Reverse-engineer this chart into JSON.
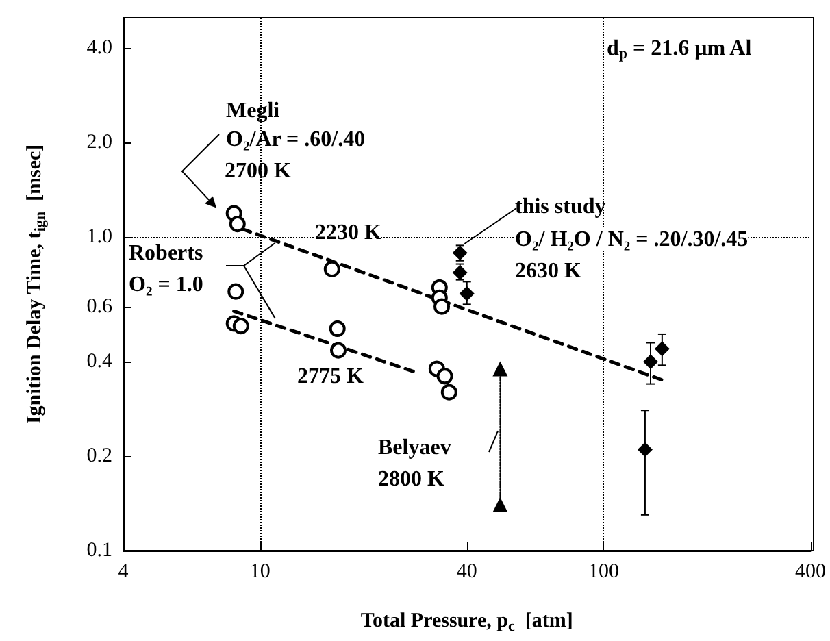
{
  "chart_data": {
    "type": "scatter",
    "xlabel": "Total Pressure, p$_{c}$  [atm]",
    "ylabel": "Ignition Delay Time, t$_{ign}$  [msec]",
    "log": "xy",
    "xlim": [
      4,
      400
    ],
    "xticks": [
      4,
      10,
      40,
      100,
      400
    ],
    "ylim": [
      0.1,
      5
    ],
    "yticks": [
      0.1,
      0.2,
      0.4,
      0.6,
      {
        "value": 1,
        "label": "1.0"
      },
      {
        "value": 2,
        "label": "2.0"
      },
      {
        "value": 4,
        "label": "4.0"
      }
    ],
    "grid": false,
    "series": [
      {
        "marker": "circle",
        "color": "#000000",
        "x": [
          8.4,
          8.6,
          16.2,
          8.5,
          8.4,
          8.8,
          16.8,
          16.9,
          33.3,
          33.3,
          33.8,
          32.7,
          34.5,
          35.5
        ],
        "values": [
          1.19,
          1.1,
          0.79,
          0.67,
          0.53,
          0.52,
          0.51,
          0.435,
          0.69,
          0.64,
          0.6,
          0.38,
          0.36,
          0.32
        ]
      },
      {
        "marker": "diamond",
        "color": "#000000",
        "x": [
          38.2,
          38.2,
          40,
          137,
          148,
          132
        ],
        "values": [
          0.89,
          0.77,
          0.66,
          0.4,
          0.44,
          0.21
        ],
        "errors": [
          [
            0.84,
            0.94
          ],
          [
            0.73,
            0.82
          ],
          [
            0.61,
            0.72
          ],
          [
            0.34,
            0.46
          ],
          [
            0.39,
            0.49
          ],
          [
            0.13,
            0.28
          ]
        ]
      },
      {
        "type": "line",
        "marker": "triangle",
        "line_style": "dotted",
        "color": "#000000",
        "x": [
          50,
          50
        ],
        "values": [
          0.38,
          0.14
        ]
      },
      {
        "type": "line",
        "marker": "none",
        "line_style": "dashed",
        "color": "#000000",
        "x": [
          8.9,
          148
        ],
        "values": [
          1.06,
          0.35
        ]
      },
      {
        "type": "line",
        "marker": "none",
        "line_style": "dashed",
        "color": "#000000",
        "x": [
          8.4,
          28.5
        ],
        "values": [
          0.58,
          0.37
        ]
      }
    ],
    "ref_lines": [
      {
        "axis": "x",
        "value": 10,
        "line_style": "dotted",
        "color": "#000000"
      },
      {
        "axis": "x",
        "value": 100,
        "line_style": "dotted",
        "color": "#000000"
      },
      {
        "axis": "y",
        "value": 1,
        "line_style": "dotted",
        "color": "#000000"
      }
    ],
    "annotations": [
      "Megli",
      "O₂/Ar = .60/.40",
      "2700 K",
      "2230 K",
      {
        "text": "Roberts",
        "x": 11.4,
        "y": 0.98
      },
      "O₂ = 1.0",
      "2775 K",
      {
        "text": "Belyaev",
        "x": 50,
        "y": 0.25
      },
      "2800 K",
      {
        "text": "this study",
        "x": 38.2,
        "y": 0.93
      },
      "O₂/ H₂O / N₂ = .20/.30/.45",
      "2630 K",
      "d$_{p}$ = 21.6 μm Al"
    ]
  }
}
